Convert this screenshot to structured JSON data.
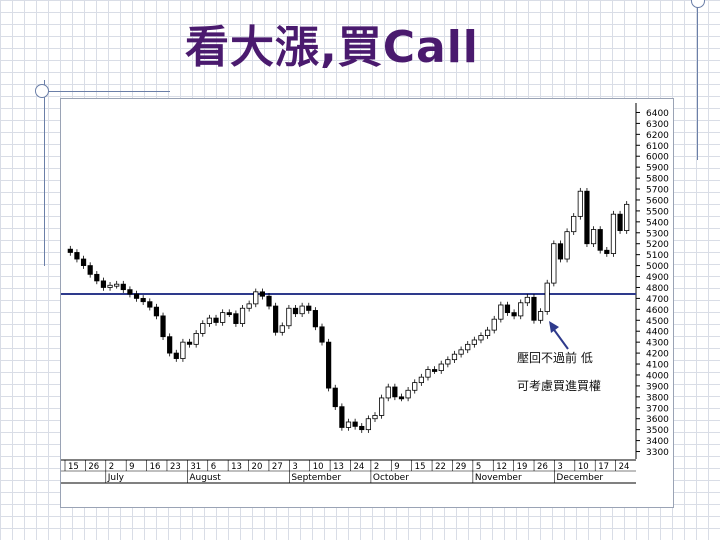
{
  "slide": {
    "title": "看大漲,買Call"
  },
  "annotations": {
    "line1": "壓回不過前 低",
    "line2": "可考慮買進買權"
  },
  "chart_data": {
    "type": "candlestick",
    "y_ticks": [
      3300,
      3400,
      3500,
      3600,
      3700,
      3800,
      3900,
      4000,
      4100,
      4200,
      4300,
      4400,
      4500,
      4600,
      4700,
      4800,
      4900,
      5000,
      5100,
      5200,
      5300,
      5400,
      5500,
      5600,
      5700,
      5800,
      5900,
      6000,
      6100,
      6200,
      6300,
      6400
    ],
    "ylim": [
      3250,
      6450
    ],
    "x_day_labels": [
      "15",
      "26",
      "2",
      "9",
      "16",
      "23",
      "31",
      "6",
      "13",
      "20",
      "27",
      "3",
      "10",
      "13",
      "24",
      "2",
      "9",
      "15",
      "22",
      "29",
      "5",
      "12",
      "19",
      "26",
      "3",
      "10",
      "17",
      "24"
    ],
    "x_month_labels": [
      "July",
      "August",
      "September",
      "October",
      "November",
      "December"
    ],
    "horizontal_line": {
      "value": 4740,
      "color": "#2e3a8c"
    },
    "candle_close": [
      5120,
      5060,
      5000,
      4920,
      4860,
      4800,
      4820,
      4830,
      4780,
      4740,
      4700,
      4670,
      4620,
      4540,
      4350,
      4200,
      4150,
      4300,
      4280,
      4380,
      4470,
      4520,
      4480,
      4570,
      4560,
      4470,
      4610,
      4650,
      4760,
      4720,
      4630,
      4390,
      4450,
      4610,
      4560,
      4630,
      4590,
      4440,
      4300,
      3880,
      3710,
      3520,
      3570,
      3530,
      3500,
      3600,
      3630,
      3790,
      3890,
      3800,
      3790,
      3860,
      3930,
      3980,
      4050,
      4040,
      4100,
      4140,
      4190,
      4230,
      4280,
      4320,
      4360,
      4410,
      4510,
      4640,
      4570,
      4540,
      4660,
      4710,
      4500,
      4580,
      4840,
      5200,
      5060,
      5310,
      5450,
      5680,
      5200,
      5330,
      5140,
      5110,
      5470,
      5320,
      5560
    ],
    "candle_open": [
      5150,
      5120,
      5060,
      5000,
      4920,
      4860,
      4800,
      4820,
      4830,
      4780,
      4740,
      4700,
      4670,
      4620,
      4540,
      4350,
      4200,
      4150,
      4300,
      4280,
      4380,
      4470,
      4520,
      4480,
      4570,
      4560,
      4470,
      4610,
      4650,
      4760,
      4720,
      4630,
      4390,
      4450,
      4610,
      4560,
      4630,
      4590,
      4440,
      4300,
      3880,
      3710,
      3520,
      3570,
      3530,
      3500,
      3600,
      3630,
      3790,
      3890,
      3800,
      3790,
      3860,
      3930,
      3980,
      4050,
      4040,
      4100,
      4140,
      4190,
      4230,
      4280,
      4320,
      4360,
      4410,
      4510,
      4640,
      4570,
      4540,
      4660,
      4710,
      4500,
      4580,
      4840,
      5200,
      5060,
      5310,
      5450,
      5680,
      5200,
      5330,
      5140,
      5110,
      5470,
      5320
    ]
  }
}
